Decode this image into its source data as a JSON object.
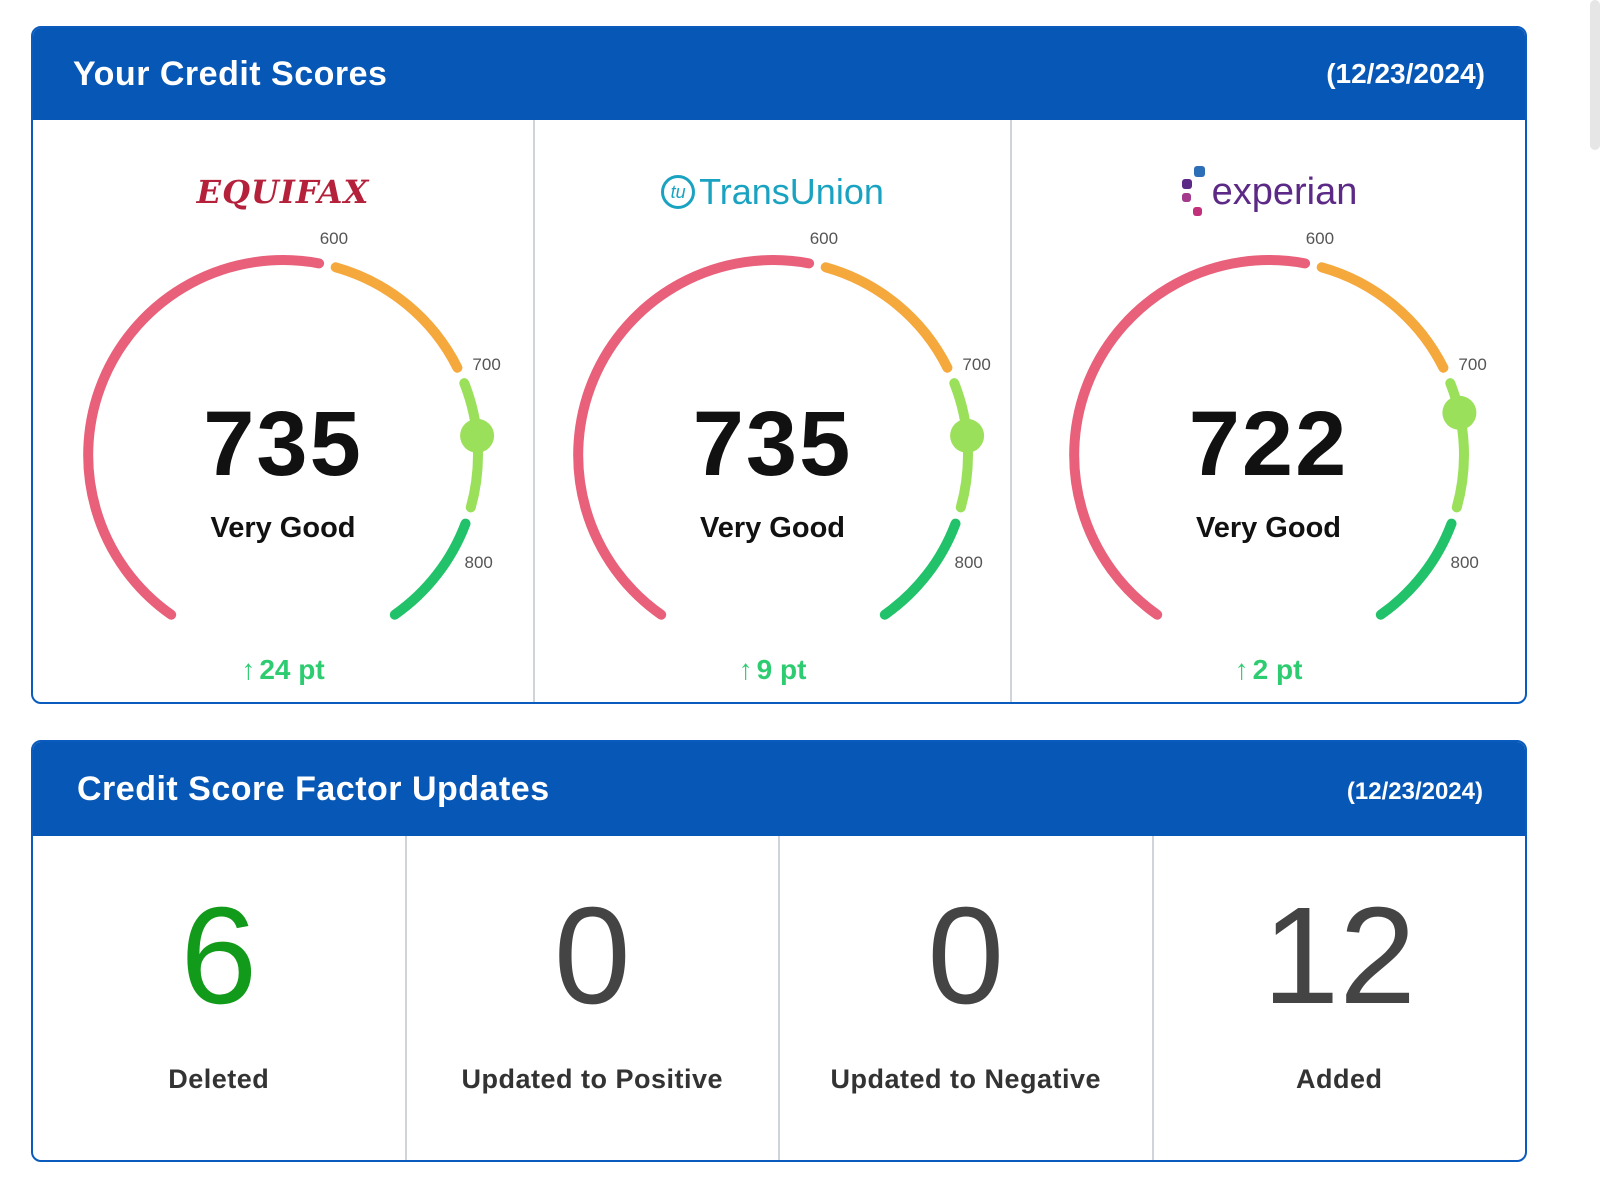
{
  "scores_panel": {
    "title": "Your Credit Scores",
    "date": "(12/23/2024)",
    "bureaus": [
      {
        "name": "EQUIFAX",
        "logo_color": "#b5213b",
        "score": "735",
        "score_value": 735,
        "rating": "Very Good",
        "change": "24 pt",
        "ticks": {
          "t600": "600",
          "t700": "700",
          "t800": "800"
        }
      },
      {
        "name": "TransUnion",
        "logo_mark": "tu",
        "logo_color": "#1aa3c1",
        "score": "735",
        "score_value": 735,
        "rating": "Very Good",
        "change": "9 pt",
        "ticks": {
          "t600": "600",
          "t700": "700",
          "t800": "800"
        }
      },
      {
        "name": "experian",
        "logo_color": "#5c2a86",
        "score": "722",
        "score_value": 722,
        "rating": "Very Good",
        "change": "2 pt",
        "ticks": {
          "t600": "600",
          "t700": "700",
          "t800": "800"
        }
      }
    ],
    "colors": {
      "poor": "#e8607a",
      "fair": "#f5a83c",
      "good": "#9be05a",
      "excellent": "#22c26a",
      "change": "#2ecc71"
    }
  },
  "factors_panel": {
    "title": "Credit Score Factor Updates",
    "date": "(12/23/2024)",
    "items": [
      {
        "count": "6",
        "label": "Deleted",
        "color": "#129b1a"
      },
      {
        "count": "0",
        "label": "Updated to Positive",
        "color": "#444444"
      },
      {
        "count": "0",
        "label": "Updated to Negative",
        "color": "#444444"
      },
      {
        "count": "12",
        "label": "Added",
        "color": "#444444"
      }
    ]
  }
}
